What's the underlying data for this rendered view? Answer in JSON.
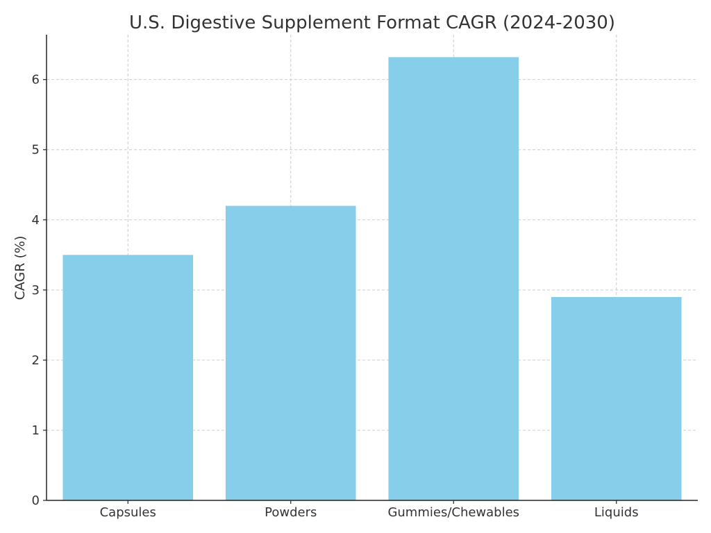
{
  "chart_data": {
    "type": "bar",
    "title": "U.S. Digestive Supplement Format CAGR (2024-2030)",
    "xlabel": "",
    "ylabel": "CAGR (%)",
    "categories": [
      "Capsules",
      "Powders",
      "Gummies/Chewables",
      "Liquids"
    ],
    "values": [
      3.5,
      4.2,
      6.32,
      2.9
    ],
    "ylim": [
      0,
      6.64
    ],
    "yticks": [
      0,
      1,
      2,
      3,
      4,
      5,
      6
    ],
    "grid": true,
    "grid_style": "dashed",
    "legend": "none",
    "colors": {
      "bar": "#87CEEB",
      "grid": "#cccccc",
      "axis": "#222222",
      "text": "#333333"
    }
  }
}
